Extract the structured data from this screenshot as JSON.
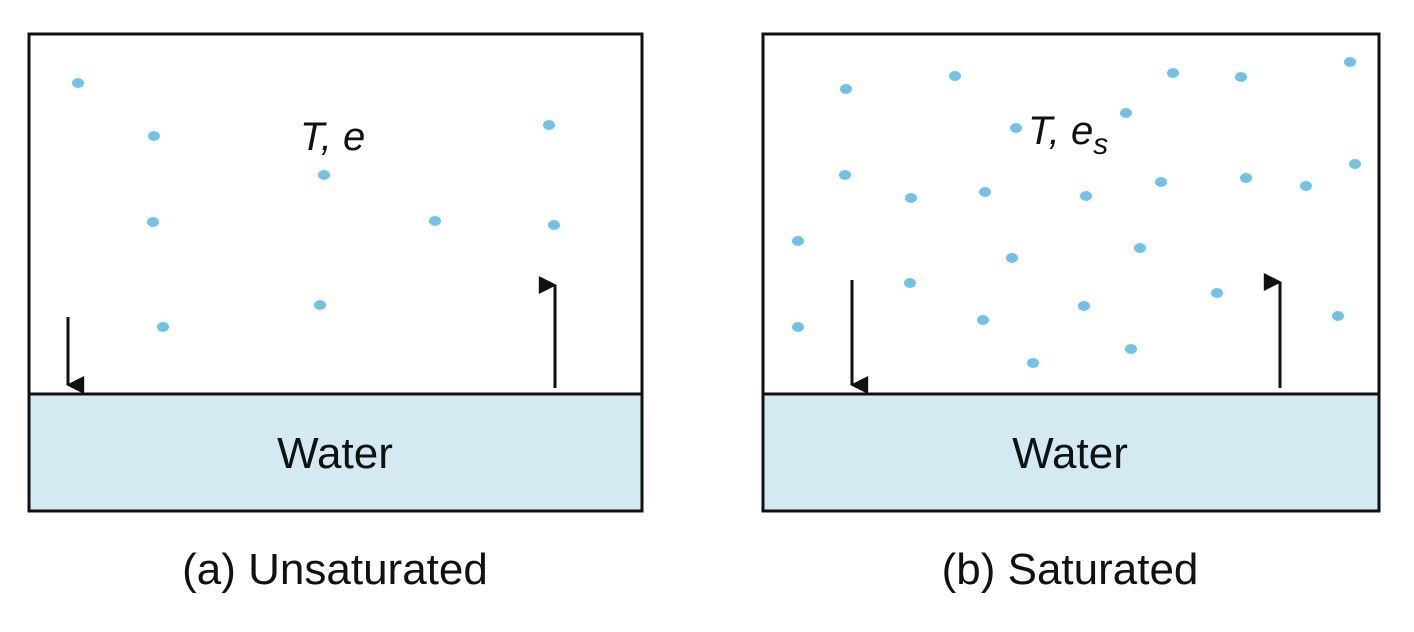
{
  "colors": {
    "molecule": "#6ec3e6",
    "water_fill": "#d3eaf2",
    "outline": "#111111",
    "arrow": "#111111"
  },
  "panels": [
    {
      "id": "unsaturated",
      "caption": "(a) Unsaturated",
      "water_label": "Water",
      "var_T": "T",
      "var_sep": ", ",
      "var_e": "e",
      "var_sub": ""
    },
    {
      "id": "saturated",
      "caption": "(b) Saturated",
      "water_label": "Water",
      "var_T": "T",
      "var_sep": ", ",
      "var_e": "e",
      "var_sub": "s"
    }
  ]
}
